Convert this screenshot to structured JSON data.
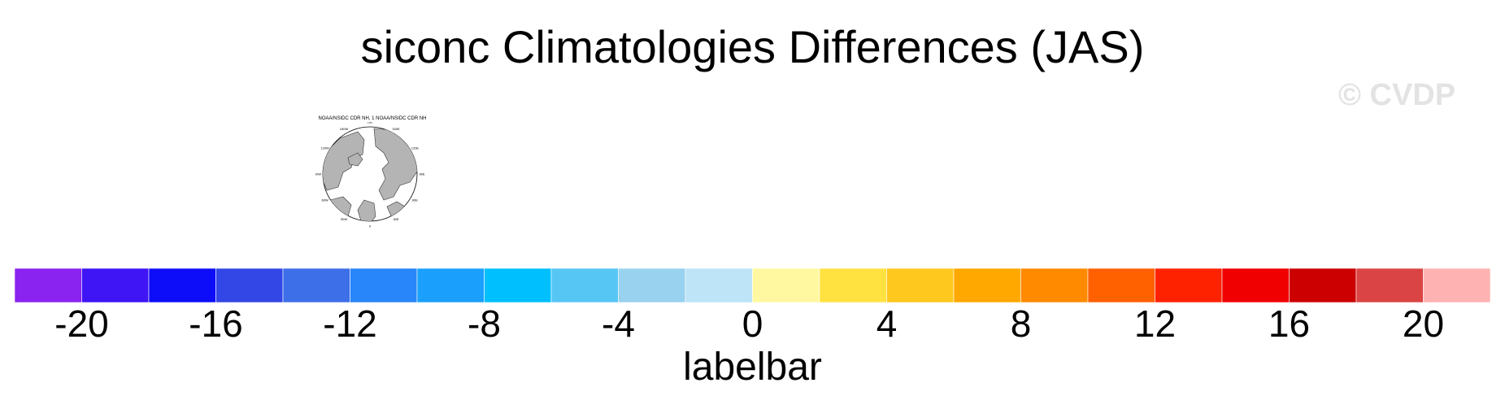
{
  "title": "siconc Climatologies Differences (JAS)",
  "watermark": "© CVDP",
  "map_panel": {
    "title": "NOAA/NSIDC CDR NH, 1 NOAA/NSIDC CDR NH",
    "lon_labels": [
      "180",
      "150E",
      "120E",
      "90E",
      "60E",
      "30E",
      "0",
      "30W",
      "60W",
      "90W",
      "120W",
      "150W"
    ],
    "land_color": "#b4b4b4"
  },
  "chart_data": {
    "type": "colorbar",
    "title": "siconc Climatologies Differences (JAS)",
    "xlabel": "labelbar",
    "levels": [
      -22,
      -20,
      -18,
      -16,
      -14,
      -12,
      -10,
      -8,
      -6,
      -4,
      -2,
      0,
      2,
      4,
      6,
      8,
      10,
      12,
      14,
      16,
      18,
      20,
      22
    ],
    "tick_labels": [
      "-20",
      "-16",
      "-12",
      "-8",
      "-4",
      "0",
      "4",
      "8",
      "12",
      "16",
      "20"
    ],
    "tick_values": [
      -20,
      -16,
      -12,
      -8,
      -4,
      0,
      4,
      8,
      12,
      16,
      20
    ],
    "colors": [
      "#8a22f0",
      "#3f14f5",
      "#0d0dfa",
      "#3346e6",
      "#3d6fe8",
      "#2886fa",
      "#1aa0fc",
      "#00bfff",
      "#56c6f5",
      "#98d2ee",
      "#bde4f7",
      "#fff8a0",
      "#ffe240",
      "#ffc81f",
      "#ffa800",
      "#ff8a00",
      "#ff6000",
      "#ff2200",
      "#f00000",
      "#cc0000",
      "#db4444",
      "#ffb2b2"
    ]
  }
}
